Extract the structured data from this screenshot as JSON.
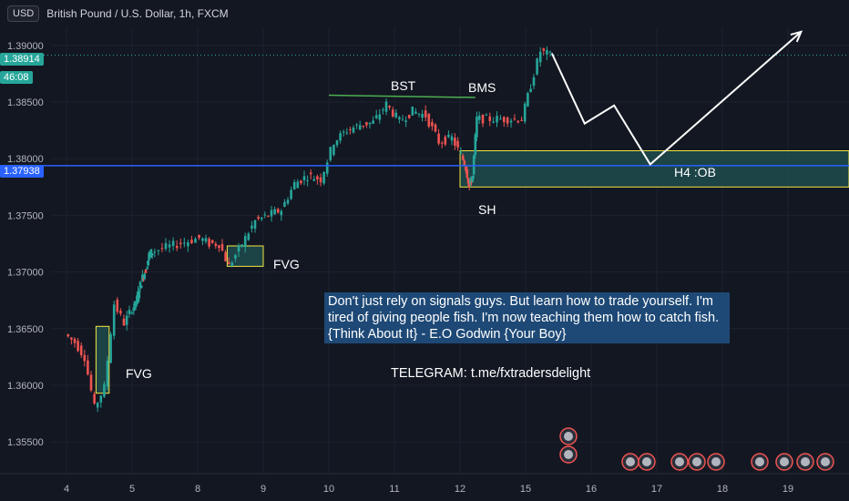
{
  "header": {
    "currency_button": "USD",
    "symbol": "British Pound / U.S. Dollar, 1h, FXCM"
  },
  "price_tags": {
    "current": "1.38914",
    "countdown": "46:08",
    "line": "1.37938"
  },
  "annotations": {
    "bst": "BST",
    "bms": "BMS",
    "fvg_upper": "FVG",
    "fvg_lower": "FVG",
    "h4_ob": "H4 :OB",
    "sh": "SH",
    "note_lines": [
      "Don't just rely on signals guys. But learn how to trade yourself. I'm",
      "tired of giving people fish. I'm now teaching them how to catch fish.",
      "{Think About It} - E.O Godwin {Your Boy}"
    ],
    "telegram": "TELEGRAM: t.me/fxtradersdelight"
  },
  "colors": {
    "background": "#131722",
    "up": "#26a69a",
    "down": "#ef5350",
    "box_fill": "#1f4b4c",
    "box_border": "#f5e642",
    "horizontal_line": "#2962ff",
    "bst_line": "#4caf50",
    "current_price": "#26a69a"
  },
  "chart_data": {
    "type": "line",
    "title": "British Pound / U.S. Dollar, 1h, FXCM",
    "xlabel": "",
    "ylabel": "",
    "x_ticks": [
      "4",
      "5",
      "8",
      "9",
      "10",
      "11",
      "12",
      "15",
      "16",
      "17",
      "18",
      "19"
    ],
    "y_ticks": [
      "1.39000",
      "1.38500",
      "1.38000",
      "1.37500",
      "1.37000",
      "1.36500",
      "1.36000",
      "1.35500"
    ],
    "ylim": [
      1.3522,
      1.3932
    ],
    "grid": true,
    "series": [
      {
        "x": [
          4.0,
          4.15,
          4.3,
          4.45,
          4.6,
          4.75,
          4.9,
          5.05,
          5.2,
          5.35,
          5.5,
          5.65,
          5.8,
          5.95,
          8.05,
          8.2,
          8.35,
          8.5,
          8.7,
          8.9,
          9.1,
          9.3,
          9.5,
          9.7,
          9.9,
          10.1,
          10.3,
          10.5,
          10.7,
          10.9,
          11.1,
          11.3,
          11.5,
          11.7,
          11.9,
          12.1,
          12.3,
          12.45,
          12.6,
          12.8,
          14.9,
          15.1,
          15.25,
          15.4
        ],
        "values": [
          1.3645,
          1.3638,
          1.3625,
          1.358,
          1.3598,
          1.3672,
          1.3655,
          1.3668,
          1.3672,
          1.3685,
          1.3695,
          1.3702,
          1.3715,
          1.3718,
          1.373,
          1.3725,
          1.3725,
          1.3705,
          1.3725,
          1.3745,
          1.375,
          1.3755,
          1.3778,
          1.3785,
          1.3782,
          1.3815,
          1.3825,
          1.383,
          1.3832,
          1.3848,
          1.3833,
          1.3842,
          1.3838,
          1.3815,
          1.3818,
          1.3803,
          1.3792,
          1.3775,
          1.3785,
          1.3835,
          1.3835,
          1.3865,
          1.3895,
          1.3891
        ]
      }
    ],
    "zones": [
      {
        "label": "FVG",
        "x": [
          4.45,
          4.65
        ],
        "y": [
          1.3593,
          1.3652
        ]
      },
      {
        "label": "FVG",
        "x": [
          8.45,
          9.0
        ],
        "y": [
          1.3705,
          1.3723
        ]
      },
      {
        "label": "H4 :OB",
        "x": [
          12.0,
          20.0
        ],
        "y": [
          1.3775,
          1.3807
        ]
      }
    ],
    "hlines": [
      {
        "label": "",
        "y": 1.37938
      }
    ],
    "projection": {
      "x": [
        15.4,
        15.9,
        16.35,
        16.9,
        19.2
      ],
      "y": [
        1.3893,
        1.3831,
        1.3847,
        1.3795,
        1.3912
      ]
    }
  }
}
